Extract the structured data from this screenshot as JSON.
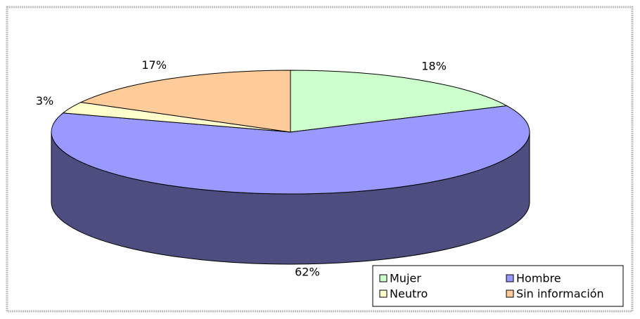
{
  "chart_data": {
    "type": "pie",
    "categories": [
      "Mujer",
      "Hombre",
      "Neutro",
      "Sin información"
    ],
    "values": [
      18,
      62,
      3,
      17
    ],
    "value_labels": [
      "18%",
      "62%",
      "3%",
      "17%"
    ],
    "colors": [
      "#ccffcc",
      "#9999ff",
      "#ffffcc",
      "#ffcc99"
    ],
    "legend": "bottom-right"
  }
}
